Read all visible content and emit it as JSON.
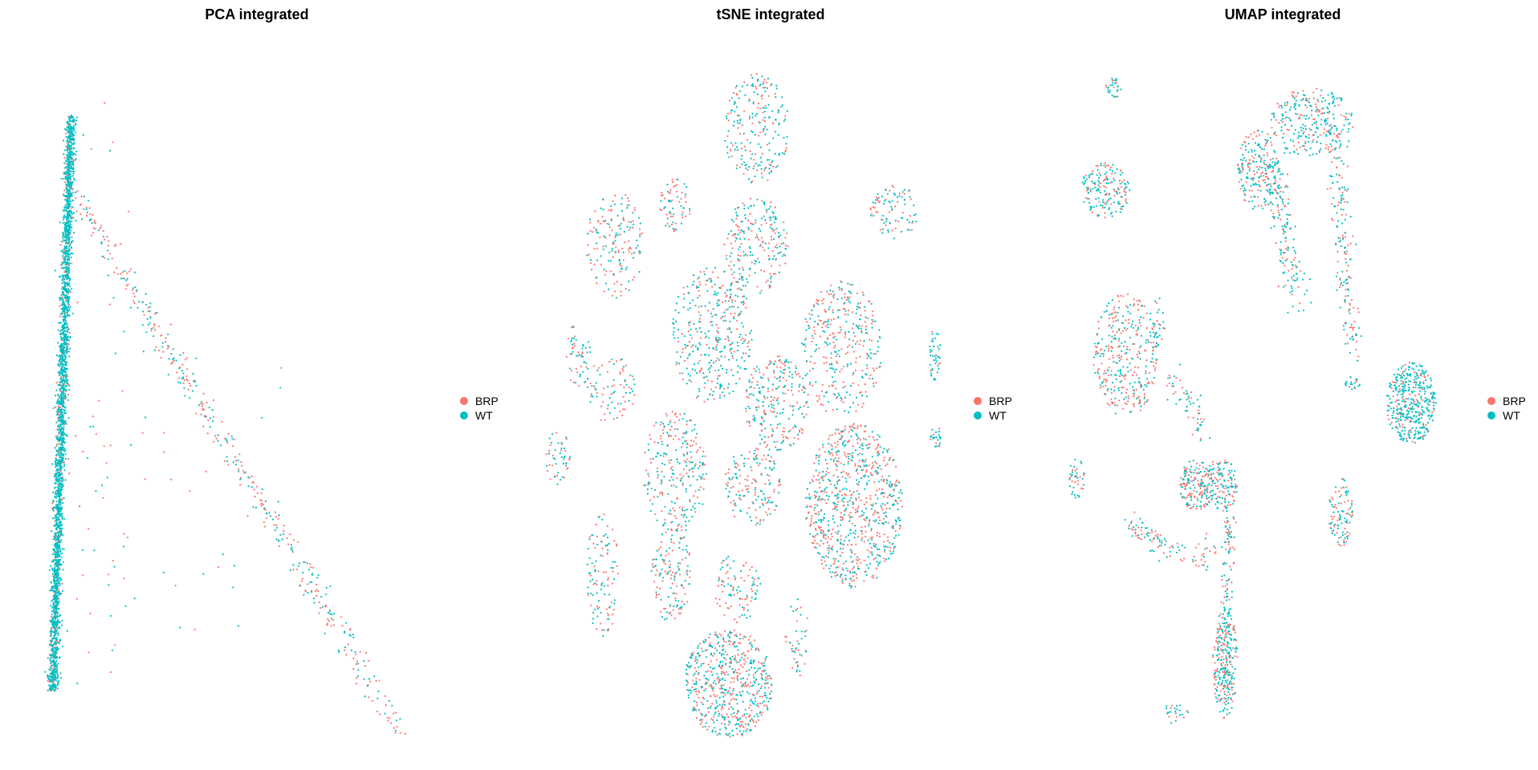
{
  "colors": {
    "BRP": "#F8766D",
    "WT": "#00BFC4"
  },
  "chart_data": [
    {
      "type": "scatter",
      "title": "PCA integrated",
      "xlabel": "",
      "ylabel": "",
      "axes": "none",
      "legend": {
        "entries": [
          "BRP",
          "WT"
        ],
        "position": "right"
      },
      "xlim": [
        0,
        100
      ],
      "ylim": [
        0,
        100
      ],
      "groups": [
        {
          "shape": "band",
          "x": [
            7,
            11.5
          ],
          "y": [
            8,
            92
          ],
          "n": 2600,
          "wt": 0.85
        },
        {
          "shape": "line",
          "from": [
            13,
            80
          ],
          "to": [
            92,
            2
          ],
          "spread": 2.2,
          "n": 420,
          "wt": 0.45
        },
        {
          "shape": "blob",
          "center": [
            18,
            50
          ],
          "radius": [
            12,
            45
          ],
          "n": 60,
          "wt": 0.5
        },
        {
          "shape": "blob",
          "center": [
            40,
            40
          ],
          "radius": [
            30,
            25
          ],
          "n": 40,
          "wt": 0.5
        }
      ]
    },
    {
      "type": "scatter",
      "title": "tSNE integrated",
      "xlabel": "",
      "ylabel": "",
      "axes": "none",
      "legend": {
        "entries": [
          "BRP",
          "WT"
        ],
        "position": "right"
      },
      "xlim": [
        0,
        100
      ],
      "ylim": [
        0,
        100
      ],
      "groups": [
        {
          "shape": "blob",
          "center": [
            52,
            90
          ],
          "radius": [
            8,
            8
          ],
          "n": 220,
          "wt": 0.55
        },
        {
          "shape": "blob",
          "center": [
            17,
            73
          ],
          "radius": [
            7,
            8
          ],
          "n": 170,
          "wt": 0.5
        },
        {
          "shape": "blob",
          "center": [
            32,
            79
          ],
          "radius": [
            4,
            4
          ],
          "n": 70,
          "wt": 0.4
        },
        {
          "shape": "blob",
          "center": [
            52,
            73
          ],
          "radius": [
            8,
            7
          ],
          "n": 220,
          "wt": 0.55
        },
        {
          "shape": "blob",
          "center": [
            86,
            78
          ],
          "radius": [
            6,
            4
          ],
          "n": 90,
          "wt": 0.5
        },
        {
          "shape": "blob",
          "center": [
            41,
            60
          ],
          "radius": [
            10,
            10
          ],
          "n": 360,
          "wt": 0.6
        },
        {
          "shape": "blob",
          "center": [
            73,
            58
          ],
          "radius": [
            10,
            10
          ],
          "n": 340,
          "wt": 0.45
        },
        {
          "shape": "blob",
          "center": [
            57,
            50
          ],
          "radius": [
            8,
            7
          ],
          "n": 250,
          "wt": 0.55
        },
        {
          "shape": "blob",
          "center": [
            96,
            57
          ],
          "radius": [
            1.5,
            4
          ],
          "n": 45,
          "wt": 0.85
        },
        {
          "shape": "blob",
          "center": [
            16,
            52
          ],
          "radius": [
            6,
            5
          ],
          "n": 80,
          "wt": 0.5
        },
        {
          "shape": "blob",
          "center": [
            8,
            57
          ],
          "radius": [
            3,
            5
          ],
          "n": 55,
          "wt": 0.5
        },
        {
          "shape": "blob",
          "center": [
            32,
            40
          ],
          "radius": [
            8,
            9
          ],
          "n": 260,
          "wt": 0.5
        },
        {
          "shape": "blob",
          "center": [
            51,
            38
          ],
          "radius": [
            7,
            6
          ],
          "n": 160,
          "wt": 0.55
        },
        {
          "shape": "blob",
          "center": [
            76,
            35
          ],
          "radius": [
            12,
            12
          ],
          "n": 800,
          "wt": 0.42
        },
        {
          "shape": "blob",
          "center": [
            96,
            45
          ],
          "radius": [
            1.5,
            2
          ],
          "n": 25,
          "wt": 0.8
        },
        {
          "shape": "blob",
          "center": [
            3,
            42
          ],
          "radius": [
            3,
            4
          ],
          "n": 50,
          "wt": 0.55
        },
        {
          "shape": "blob",
          "center": [
            14,
            25
          ],
          "radius": [
            4,
            9
          ],
          "n": 110,
          "wt": 0.5
        },
        {
          "shape": "blob",
          "center": [
            31,
            25
          ],
          "radius": [
            5,
            7
          ],
          "n": 140,
          "wt": 0.55
        },
        {
          "shape": "blob",
          "center": [
            47,
            23
          ],
          "radius": [
            6,
            5
          ],
          "n": 100,
          "wt": 0.5
        },
        {
          "shape": "blob",
          "center": [
            45,
            9
          ],
          "radius": [
            11,
            8
          ],
          "n": 600,
          "wt": 0.48
        },
        {
          "shape": "blob",
          "center": [
            62,
            16
          ],
          "radius": [
            3,
            6
          ],
          "n": 45,
          "wt": 0.5
        }
      ]
    },
    {
      "type": "scatter",
      "title": "UMAP integrated",
      "xlabel": "",
      "ylabel": "",
      "axes": "none",
      "legend": {
        "entries": [
          "BRP",
          "WT"
        ],
        "position": "right"
      },
      "xlim": [
        0,
        100
      ],
      "ylim": [
        0,
        100
      ],
      "groups": [
        {
          "shape": "blob",
          "center": [
            63,
            91
          ],
          "radius": [
            10,
            5
          ],
          "n": 260,
          "wt": 0.65
        },
        {
          "shape": "blob",
          "center": [
            50,
            84
          ],
          "radius": [
            5,
            6
          ],
          "n": 200,
          "wt": 0.6
        },
        {
          "shape": "line",
          "from": [
            54,
            85
          ],
          "to": [
            59,
            65
          ],
          "spread": 3,
          "n": 160,
          "wt": 0.55
        },
        {
          "shape": "line",
          "from": [
            68,
            90
          ],
          "to": [
            73,
            58
          ],
          "spread": 2.5,
          "n": 180,
          "wt": 0.55
        },
        {
          "shape": "blob",
          "center": [
            13,
            81
          ],
          "radius": [
            6,
            4
          ],
          "n": 170,
          "wt": 0.55
        },
        {
          "shape": "blob",
          "center": [
            15,
            96
          ],
          "radius": [
            2,
            1.5
          ],
          "n": 30,
          "wt": 0.8
        },
        {
          "shape": "blob",
          "center": [
            26,
            62
          ],
          "radius": [
            1.5,
            4
          ],
          "n": 25,
          "wt": 0.75
        },
        {
          "shape": "blob",
          "center": [
            18,
            57
          ],
          "radius": [
            8,
            9
          ],
          "n": 340,
          "wt": 0.4
        },
        {
          "shape": "line",
          "from": [
            29,
            54
          ],
          "to": [
            37,
            46
          ],
          "spread": 2.5,
          "n": 60,
          "wt": 0.55
        },
        {
          "shape": "blob",
          "center": [
            87,
            50
          ],
          "radius": [
            6,
            6
          ],
          "n": 420,
          "wt": 0.82
        },
        {
          "shape": "blob",
          "center": [
            73,
            53
          ],
          "radius": [
            2,
            1
          ],
          "n": 20,
          "wt": 0.8
        },
        {
          "shape": "blob",
          "center": [
            35,
            38
          ],
          "radius": [
            4,
            4
          ],
          "n": 170,
          "wt": 0.45
        },
        {
          "shape": "blob",
          "center": [
            41,
            38
          ],
          "radius": [
            4,
            4
          ],
          "n": 140,
          "wt": 0.6
        },
        {
          "shape": "blob",
          "center": [
            6,
            39
          ],
          "radius": [
            2,
            3
          ],
          "n": 40,
          "wt": 0.6
        },
        {
          "shape": "blob",
          "center": [
            70,
            34
          ],
          "radius": [
            3,
            5
          ],
          "n": 100,
          "wt": 0.5
        },
        {
          "shape": "line",
          "from": [
            19,
            32
          ],
          "to": [
            32,
            28
          ],
          "spread": 1.8,
          "n": 80,
          "wt": 0.5
        },
        {
          "shape": "line",
          "from": [
            43,
            34
          ],
          "to": [
            42,
            8
          ],
          "spread": 1.6,
          "n": 150,
          "wt": 0.55
        },
        {
          "shape": "blob",
          "center": [
            42,
            12
          ],
          "radius": [
            3,
            8
          ],
          "n": 220,
          "wt": 0.5
        },
        {
          "shape": "blob",
          "center": [
            37,
            28
          ],
          "radius": [
            3,
            3
          ],
          "n": 25,
          "wt": 0.5
        },
        {
          "shape": "blob",
          "center": [
            30,
            5
          ],
          "radius": [
            3,
            2
          ],
          "n": 25,
          "wt": 0.6
        }
      ]
    }
  ]
}
